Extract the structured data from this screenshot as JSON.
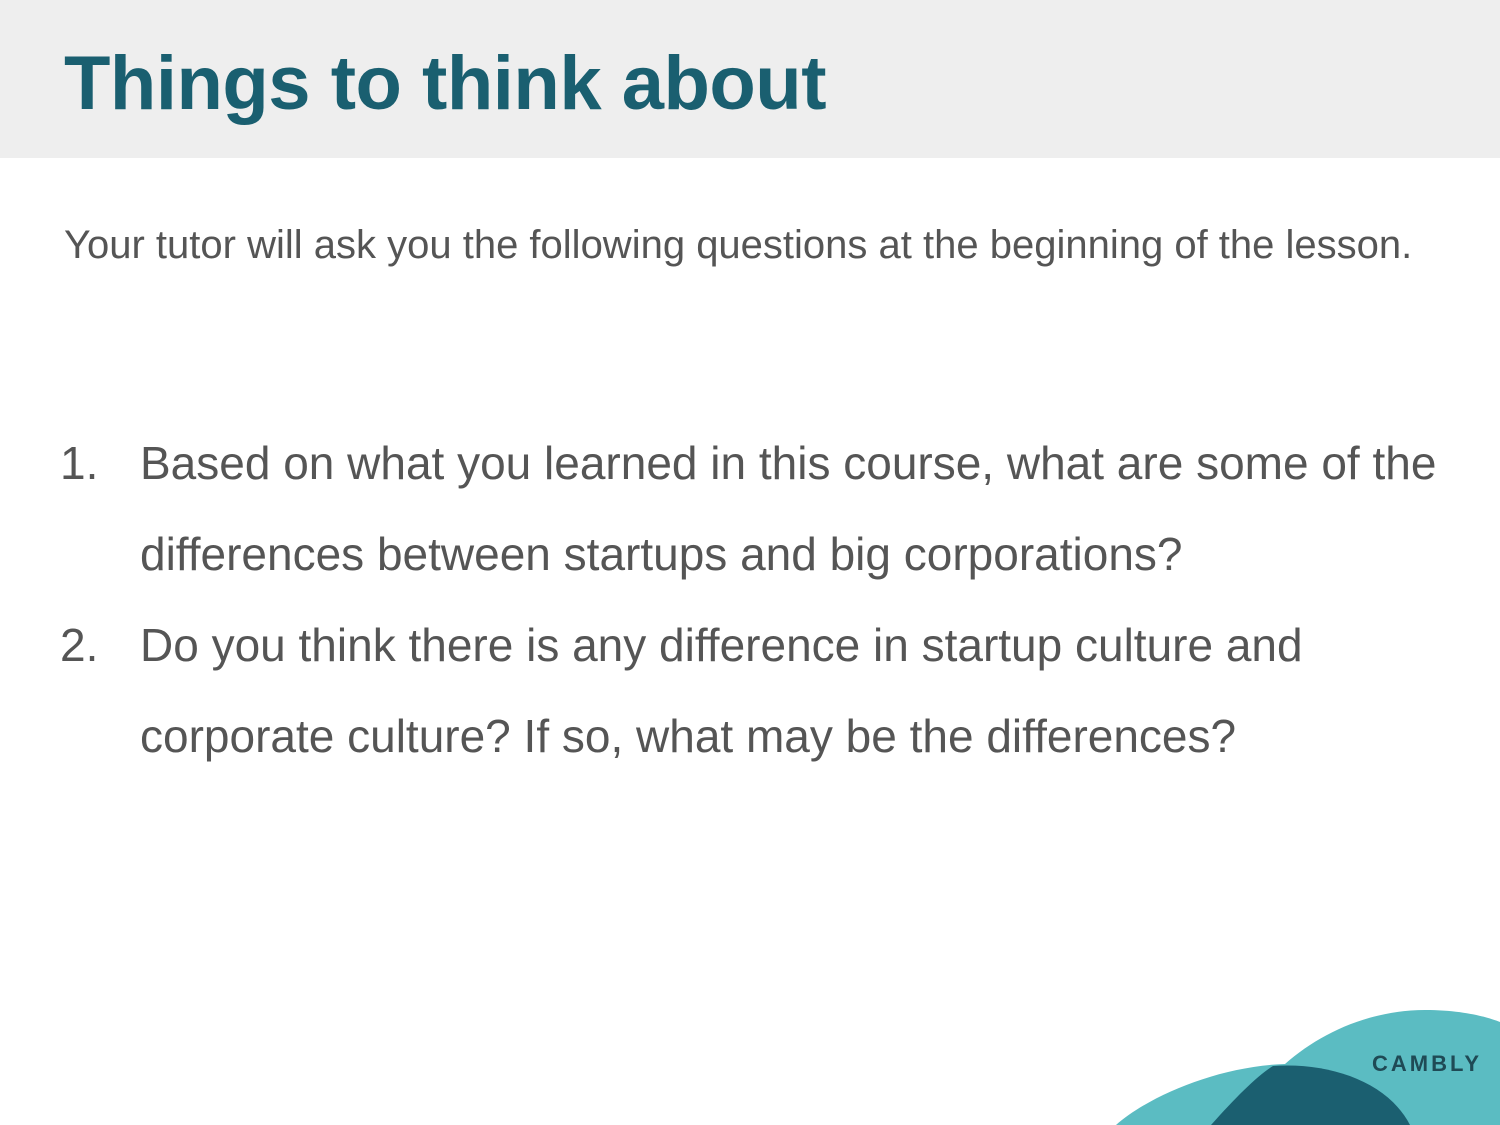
{
  "slide": {
    "title": "Things to think about",
    "intro": "Your tutor will ask you the following questions at the beginning of the lesson.",
    "questions": [
      {
        "number": "1.",
        "text": "Based on what you learned in this course, what are some of the differences between startups and big corporations?"
      },
      {
        "number": "2.",
        "text": "Do you think there is any difference in startup culture and corporate culture? If so, what may be the differences?"
      }
    ]
  },
  "brand": {
    "name": "CAMBLY"
  },
  "colors": {
    "title": "#1a5f70",
    "body_text": "#555555",
    "header_background": "#eeeeee",
    "wave_light": "#5bbcc2",
    "wave_dark": "#1b5f70",
    "brand_text": "#1f4a55"
  }
}
